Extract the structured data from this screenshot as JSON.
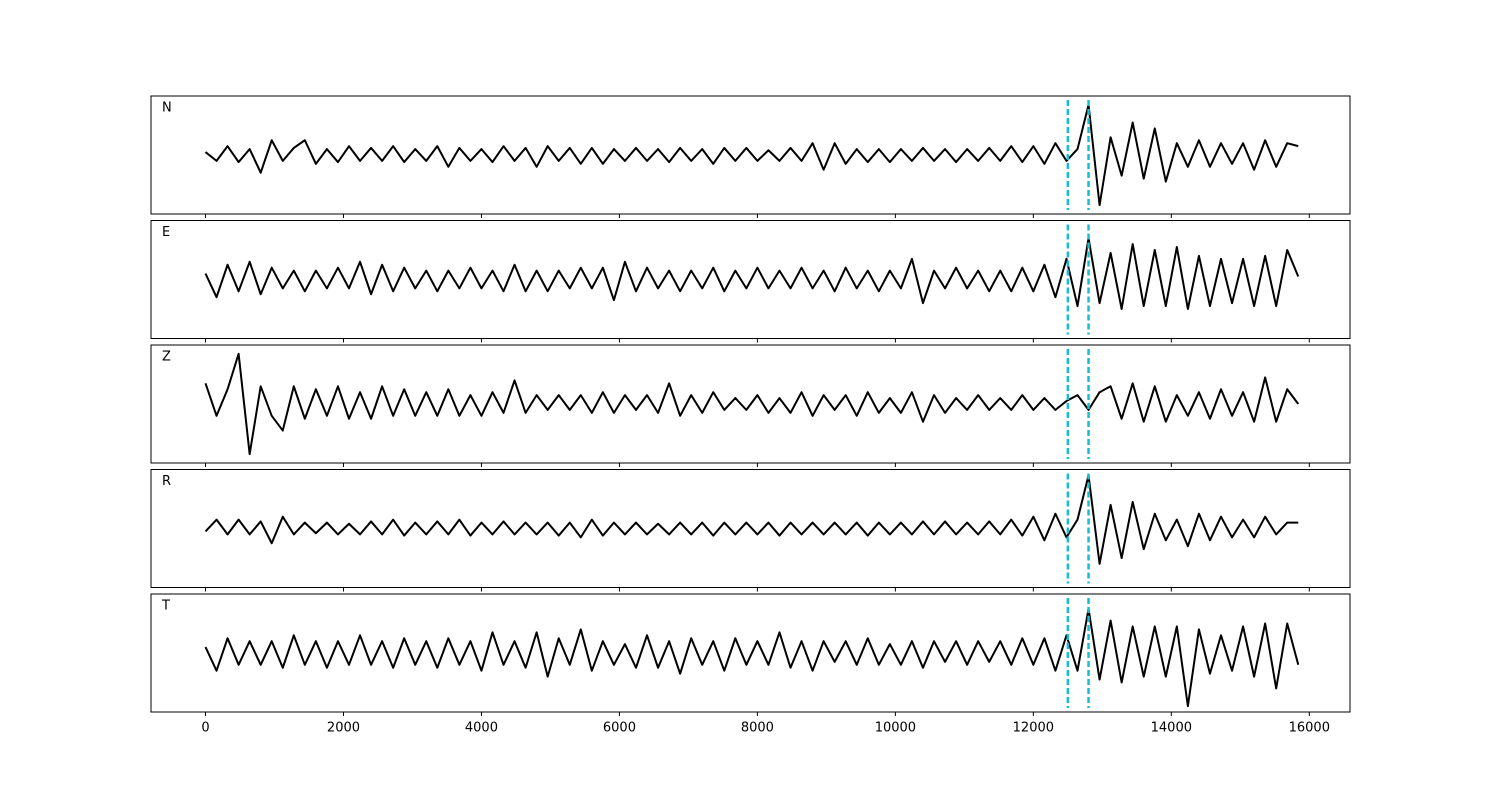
{
  "chart_data": {
    "type": "line",
    "x": [
      0,
      160,
      320,
      480,
      640,
      800,
      960,
      1120,
      1280,
      1440,
      1600,
      1760,
      1920,
      2080,
      2240,
      2400,
      2560,
      2720,
      2880,
      3040,
      3200,
      3360,
      3520,
      3680,
      3840,
      4000,
      4160,
      4320,
      4480,
      4640,
      4800,
      4960,
      5120,
      5280,
      5440,
      5600,
      5760,
      5920,
      6080,
      6240,
      6400,
      6560,
      6720,
      6880,
      7040,
      7200,
      7360,
      7520,
      7680,
      7840,
      8000,
      8160,
      8320,
      8480,
      8640,
      8800,
      8960,
      9120,
      9280,
      9440,
      9600,
      9760,
      9920,
      10080,
      10240,
      10400,
      10560,
      10720,
      10880,
      11040,
      11200,
      11360,
      11520,
      11680,
      11840,
      12000,
      12160,
      12320,
      12480,
      12640,
      12800,
      12960,
      13120,
      13280,
      13440,
      13600,
      13760,
      13920,
      14080,
      14240,
      14400,
      14560,
      14720,
      14880,
      15040,
      15200,
      15360,
      15520,
      15680,
      15840
    ],
    "xlim": [
      -790,
      16590
    ],
    "xticks": [
      0,
      2000,
      4000,
      6000,
      8000,
      10000,
      12000,
      14000,
      16000
    ],
    "ylim": [
      -1,
      1
    ],
    "series": [
      {
        "name": "N",
        "color": "#000000",
        "values": [
          0.05,
          -0.1,
          0.15,
          -0.12,
          0.1,
          -0.3,
          0.25,
          -0.1,
          0.12,
          0.25,
          -0.15,
          0.1,
          -0.12,
          0.15,
          -0.1,
          0.12,
          -0.1,
          0.15,
          -0.12,
          0.1,
          -0.1,
          0.15,
          -0.2,
          0.12,
          -0.1,
          0.1,
          -0.12,
          0.15,
          -0.1,
          0.12,
          -0.2,
          0.15,
          -0.1,
          0.12,
          -0.15,
          0.12,
          -0.15,
          0.1,
          -0.1,
          0.12,
          -0.1,
          0.1,
          -0.12,
          0.12,
          -0.1,
          0.1,
          -0.15,
          0.12,
          -0.1,
          0.12,
          -0.1,
          0.08,
          -0.1,
          0.12,
          -0.1,
          0.2,
          -0.25,
          0.2,
          -0.15,
          0.1,
          -0.12,
          0.1,
          -0.12,
          0.1,
          -0.1,
          0.12,
          -0.1,
          0.1,
          -0.12,
          0.1,
          -0.1,
          0.12,
          -0.1,
          0.15,
          -0.12,
          0.15,
          -0.15,
          0.2,
          -0.1,
          0.1,
          0.85,
          -0.85,
          0.3,
          -0.35,
          0.55,
          -0.4,
          0.45,
          -0.45,
          0.2,
          -0.2,
          0.25,
          -0.2,
          0.2,
          -0.15,
          0.2,
          -0.25,
          0.25,
          -0.2,
          0.2,
          0.15
        ]
      },
      {
        "name": "E",
        "color": "#000000",
        "values": [
          0.1,
          -0.3,
          0.25,
          -0.2,
          0.3,
          -0.25,
          0.2,
          -0.15,
          0.15,
          -0.2,
          0.15,
          -0.15,
          0.2,
          -0.15,
          0.3,
          -0.25,
          0.25,
          -0.2,
          0.2,
          -0.15,
          0.15,
          -0.2,
          0.15,
          -0.15,
          0.2,
          -0.15,
          0.15,
          -0.2,
          0.25,
          -0.2,
          0.15,
          -0.2,
          0.15,
          -0.15,
          0.2,
          -0.15,
          0.2,
          -0.35,
          0.3,
          -0.2,
          0.2,
          -0.15,
          0.15,
          -0.2,
          0.15,
          -0.15,
          0.2,
          -0.2,
          0.15,
          -0.15,
          0.2,
          -0.15,
          0.15,
          -0.15,
          0.2,
          -0.15,
          0.15,
          -0.2,
          0.2,
          -0.15,
          0.15,
          -0.2,
          0.15,
          -0.15,
          0.35,
          -0.4,
          0.15,
          -0.15,
          0.2,
          -0.15,
          0.15,
          -0.2,
          0.15,
          -0.2,
          0.2,
          -0.2,
          0.25,
          -0.3,
          0.35,
          -0.45,
          0.7,
          -0.4,
          0.45,
          -0.5,
          0.6,
          -0.45,
          0.5,
          -0.45,
          0.55,
          -0.5,
          0.4,
          -0.45,
          0.35,
          -0.4,
          0.35,
          -0.45,
          0.4,
          -0.45,
          0.5,
          0.05
        ]
      },
      {
        "name": "Z",
        "color": "#000000",
        "values": [
          0.35,
          -0.2,
          0.25,
          0.85,
          -0.85,
          0.3,
          -0.2,
          -0.45,
          0.3,
          -0.25,
          0.25,
          -0.2,
          0.3,
          -0.25,
          0.2,
          -0.25,
          0.3,
          -0.2,
          0.25,
          -0.2,
          0.2,
          -0.2,
          0.25,
          -0.2,
          0.15,
          -0.2,
          0.2,
          -0.15,
          0.4,
          -0.15,
          0.15,
          -0.1,
          0.15,
          -0.1,
          0.15,
          -0.15,
          0.2,
          -0.15,
          0.15,
          -0.1,
          0.15,
          -0.15,
          0.35,
          -0.2,
          0.15,
          -0.15,
          0.2,
          -0.1,
          0.1,
          -0.1,
          0.15,
          -0.15,
          0.1,
          -0.15,
          0.2,
          -0.2,
          0.15,
          -0.1,
          0.15,
          -0.2,
          0.2,
          -0.15,
          0.1,
          -0.15,
          0.2,
          -0.3,
          0.15,
          -0.15,
          0.1,
          -0.1,
          0.15,
          -0.1,
          0.1,
          -0.1,
          0.15,
          -0.1,
          0.1,
          -0.1,
          0.05,
          0.15,
          -0.1,
          0.2,
          0.3,
          -0.25,
          0.35,
          -0.3,
          0.3,
          -0.3,
          0.15,
          -0.2,
          0.2,
          -0.25,
          0.25,
          -0.2,
          0.2,
          -0.3,
          0.45,
          -0.3,
          0.25,
          0.0
        ]
      },
      {
        "name": "R",
        "color": "#000000",
        "values": [
          -0.05,
          0.15,
          -0.1,
          0.15,
          -0.1,
          0.12,
          -0.25,
          0.2,
          -0.1,
          0.1,
          -0.08,
          0.1,
          -0.1,
          0.08,
          -0.1,
          0.12,
          -0.1,
          0.15,
          -0.12,
          0.1,
          -0.1,
          0.12,
          -0.1,
          0.15,
          -0.12,
          0.1,
          -0.1,
          0.12,
          -0.1,
          0.1,
          -0.1,
          0.1,
          -0.12,
          0.1,
          -0.15,
          0.15,
          -0.12,
          0.1,
          -0.1,
          0.1,
          -0.1,
          0.08,
          -0.1,
          0.1,
          -0.1,
          0.1,
          -0.12,
          0.1,
          -0.1,
          0.1,
          -0.1,
          0.1,
          -0.12,
          0.1,
          -0.1,
          0.1,
          -0.1,
          0.1,
          -0.1,
          0.1,
          -0.12,
          0.1,
          -0.1,
          0.1,
          -0.1,
          0.12,
          -0.1,
          0.12,
          -0.1,
          0.1,
          -0.1,
          0.12,
          -0.1,
          0.15,
          -0.12,
          0.2,
          -0.2,
          0.25,
          -0.15,
          0.15,
          0.9,
          -0.6,
          0.4,
          -0.5,
          0.45,
          -0.35,
          0.25,
          -0.2,
          0.15,
          -0.3,
          0.25,
          -0.2,
          0.2,
          -0.15,
          0.15,
          -0.15,
          0.2,
          -0.1,
          0.1,
          0.1
        ]
      },
      {
        "name": "T",
        "color": "#000000",
        "values": [
          0.1,
          -0.3,
          0.25,
          -0.2,
          0.2,
          -0.2,
          0.2,
          -0.25,
          0.3,
          -0.2,
          0.2,
          -0.25,
          0.2,
          -0.2,
          0.3,
          -0.2,
          0.2,
          -0.25,
          0.25,
          -0.2,
          0.2,
          -0.25,
          0.25,
          -0.2,
          0.2,
          -0.3,
          0.35,
          -0.2,
          0.2,
          -0.25,
          0.35,
          -0.4,
          0.25,
          -0.2,
          0.4,
          -0.3,
          0.2,
          -0.2,
          0.15,
          -0.25,
          0.3,
          -0.25,
          0.2,
          -0.35,
          0.25,
          -0.2,
          0.2,
          -0.3,
          0.25,
          -0.2,
          0.2,
          -0.2,
          0.35,
          -0.25,
          0.2,
          -0.3,
          0.2,
          -0.15,
          0.2,
          -0.2,
          0.25,
          -0.2,
          0.15,
          -0.2,
          0.2,
          -0.25,
          0.2,
          -0.15,
          0.2,
          -0.2,
          0.2,
          -0.15,
          0.2,
          -0.2,
          0.25,
          -0.2,
          0.25,
          -0.3,
          0.3,
          -0.3,
          0.75,
          -0.45,
          0.55,
          -0.5,
          0.45,
          -0.4,
          0.45,
          -0.4,
          0.45,
          -0.9,
          0.4,
          -0.35,
          0.3,
          -0.3,
          0.45,
          -0.4,
          0.5,
          -0.6,
          0.5,
          -0.2
        ]
      }
    ],
    "vlines": {
      "values": [
        12500,
        12800
      ],
      "color": "#17becf"
    }
  }
}
